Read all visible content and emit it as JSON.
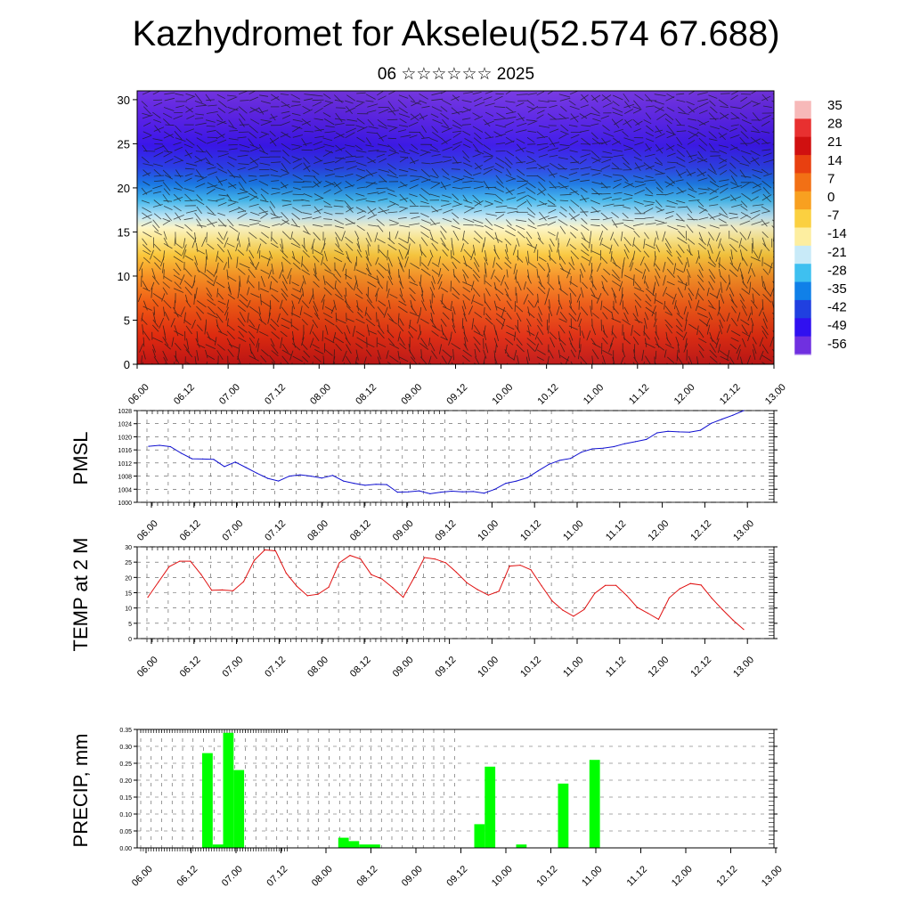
{
  "title": "Kazhydromet for Akseleu(52.574 67.688)",
  "subtitle": "06 ☆☆☆☆☆☆ 2025",
  "chart_data": [
    {
      "type": "heatmap",
      "name": "vertical cross-section",
      "y_ticks": [
        "0",
        "5",
        "10",
        "15",
        "20",
        "25",
        "30"
      ],
      "ylim": [
        0,
        31
      ],
      "x_ticks": [
        "06.00",
        "06.12",
        "07.00",
        "07.12",
        "08.00",
        "08.12",
        "09.00",
        "09.12",
        "10.00",
        "10.12",
        "11.00",
        "11.12",
        "12.00",
        "12.12",
        "13.00"
      ],
      "colorbar_labels": [
        "35",
        "28",
        "21",
        "14",
        "7",
        "0",
        "-7",
        "-14",
        "-21",
        "-28",
        "-35",
        "-42",
        "-49",
        "-56"
      ],
      "colorbar_colors": [
        "#f7b9b9",
        "#e83030",
        "#d01010",
        "#e84010",
        "#f27015",
        "#f8a020",
        "#fbd040",
        "#fdeea0",
        "#c8eaf8",
        "#3ec0f0",
        "#1080e8",
        "#2040e0",
        "#3010f0",
        "#7030e0"
      ]
    },
    {
      "type": "line",
      "ylabel": "PMSL",
      "ylim": [
        1000,
        1028
      ],
      "y_ticks": [
        "1000",
        "1004",
        "1008",
        "1012",
        "1016",
        "1020",
        "1024",
        "1028"
      ],
      "x_ticks": [
        "06.00",
        "06.12",
        "07.00",
        "07.12",
        "08.00",
        "08.12",
        "09.00",
        "09.12",
        "10.00",
        "10.12",
        "11.00",
        "11.12",
        "12.00",
        "12.12",
        "13.00"
      ],
      "color": "#1010d0",
      "values": [
        1017.1,
        1017.4,
        1017.0,
        1015.0,
        1013.3,
        1013.2,
        1013.1,
        1010.9,
        1012.3,
        1010.6,
        1008.9,
        1007.3,
        1006.5,
        1008.0,
        1008.4,
        1008.0,
        1007.4,
        1008.2,
        1006.5,
        1005.8,
        1005.2,
        1005.5,
        1005.4,
        1003.1,
        1003.2,
        1003.5,
        1002.6,
        1003.1,
        1003.4,
        1003.2,
        1003.3,
        1002.8,
        1004.0,
        1005.8,
        1006.5,
        1007.5,
        1009.6,
        1011.6,
        1012.8,
        1013.4,
        1015.3,
        1016.3,
        1016.5,
        1017.0,
        1017.9,
        1018.5,
        1019.2,
        1021.2,
        1021.7,
        1021.5,
        1021.4,
        1022.0,
        1024.1,
        1025.4,
        1026.6,
        1028.0
      ]
    },
    {
      "type": "line",
      "ylabel": "TEMP at 2 M",
      "ylim": [
        0,
        30
      ],
      "y_ticks": [
        "0",
        "5",
        "10",
        "15",
        "20",
        "25",
        "30"
      ],
      "x_ticks": [
        "06.00",
        "06.12",
        "07.00",
        "07.12",
        "08.00",
        "08.12",
        "09.00",
        "09.12",
        "10.00",
        "10.12",
        "11.00",
        "11.12",
        "12.00",
        "12.12",
        "13.00"
      ],
      "color": "#e01010",
      "values": [
        13.5,
        18.5,
        23.5,
        25.3,
        25.3,
        21.0,
        15.8,
        15.9,
        15.6,
        18.6,
        25.6,
        29.0,
        28.7,
        21.4,
        17.1,
        14.0,
        14.5,
        16.8,
        24.8,
        27.2,
        26.0,
        20.9,
        19.5,
        16.7,
        13.5,
        19.8,
        26.5,
        26.0,
        24.8,
        21.7,
        18.2,
        16.0,
        14.2,
        15.5,
        23.7,
        24.0,
        22.5,
        17.3,
        12.3,
        9.3,
        7.3,
        9.5,
        14.8,
        17.4,
        17.4,
        14.1,
        10.2,
        8.3,
        6.3,
        13.3,
        16.3,
        18.0,
        17.5,
        13.2,
        9.5,
        6.0,
        3.0
      ]
    },
    {
      "type": "bar",
      "ylabel": "PRECIP, mm",
      "ylim": [
        0,
        0.35
      ],
      "y_ticks": [
        "0.00",
        "0.05",
        "0.10",
        "0.15",
        "0.20",
        "0.25",
        "0.30",
        "0.35"
      ],
      "x_ticks": [
        "06.00",
        "06.12",
        "07.00",
        "07.12",
        "08.00",
        "08.12",
        "09.00",
        "09.12",
        "10.00",
        "10.12",
        "11.00",
        "11.12",
        "12.00",
        "12.12",
        "13.00"
      ],
      "color": "#00ff00",
      "values": [
        0,
        0,
        0,
        0,
        0,
        0,
        0,
        0,
        0.28,
        0.01,
        0.34,
        0.23,
        0,
        0,
        0,
        0,
        0,
        0,
        0,
        0,
        0,
        0.03,
        0.02,
        0.01,
        0.01,
        0,
        0,
        0,
        0,
        0,
        0,
        0,
        0,
        0,
        0.07,
        0.24,
        0,
        0,
        0.01,
        0,
        0,
        0,
        0.19,
        0,
        0,
        0.26,
        0,
        0,
        0,
        0,
        0,
        0,
        0,
        0,
        0,
        0,
        0,
        0,
        0,
        0,
        0,
        0,
        0,
        0,
        0,
        0,
        0,
        0,
        0,
        0,
        0
      ]
    }
  ]
}
